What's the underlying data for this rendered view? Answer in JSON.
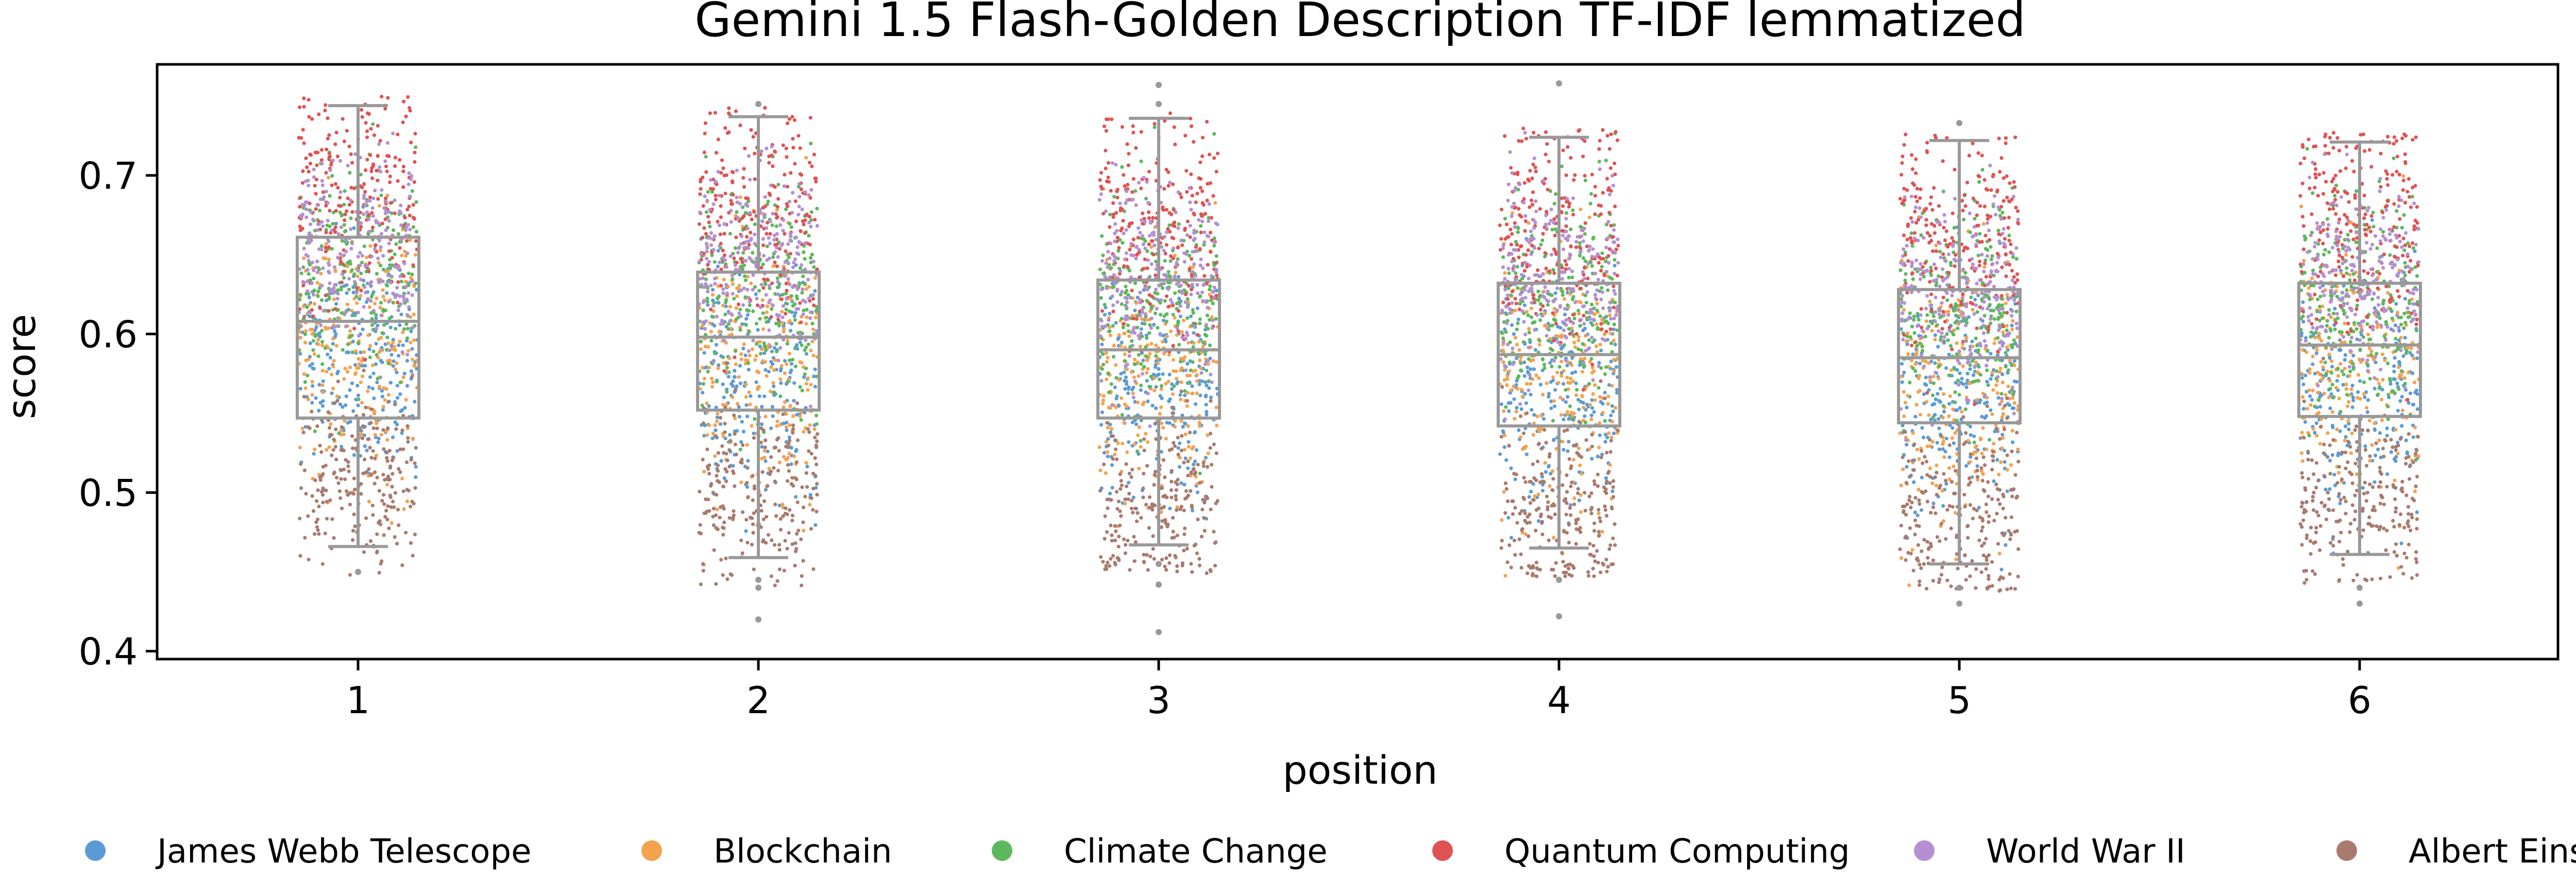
{
  "chart_data": {
    "type": "box-strip",
    "title": "Gemini 1.5 Flash-Golden Description TF-IDF lemmatized",
    "xlabel": "position",
    "ylabel": "score",
    "categories": [
      "1",
      "2",
      "3",
      "4",
      "5",
      "6"
    ],
    "yticks": [
      "0.4",
      "0.5",
      "0.6",
      "0.7"
    ],
    "ylim": [
      0.395,
      0.77
    ],
    "grid": false,
    "legend_position": "bottom",
    "box_color": "#999999",
    "boxes": [
      {
        "position": "1",
        "whislo": 0.466,
        "q1": 0.547,
        "median": 0.608,
        "q3": 0.661,
        "whishi": 0.744,
        "outliers": [
          0.45
        ]
      },
      {
        "position": "2",
        "whislo": 0.459,
        "q1": 0.552,
        "median": 0.598,
        "q3": 0.639,
        "whishi": 0.737,
        "outliers": [
          0.445,
          0.44,
          0.42,
          0.745
        ]
      },
      {
        "position": "3",
        "whislo": 0.467,
        "q1": 0.547,
        "median": 0.59,
        "q3": 0.634,
        "whishi": 0.736,
        "outliers": [
          0.455,
          0.442,
          0.412,
          0.745,
          0.757
        ]
      },
      {
        "position": "4",
        "whislo": 0.465,
        "q1": 0.542,
        "median": 0.587,
        "q3": 0.632,
        "whishi": 0.724,
        "outliers": [
          0.445,
          0.422,
          0.758
        ]
      },
      {
        "position": "5",
        "whislo": 0.455,
        "q1": 0.544,
        "median": 0.585,
        "q3": 0.628,
        "whishi": 0.722,
        "outliers": [
          0.44,
          0.43,
          0.733
        ]
      },
      {
        "position": "6",
        "whislo": 0.461,
        "q1": 0.548,
        "median": 0.593,
        "q3": 0.632,
        "whishi": 0.721,
        "outliers": [
          0.44,
          0.43
        ]
      }
    ],
    "series": [
      {
        "name": "James Webb Telescope",
        "color": "#5b9bd5",
        "center": 0.575,
        "spread": 0.035
      },
      {
        "name": "Blockchain",
        "color": "#f4a24d",
        "center": 0.585,
        "spread": 0.04
      },
      {
        "name": "Climate Change",
        "color": "#5cb85c",
        "center": 0.63,
        "spread": 0.035
      },
      {
        "name": "Quantum Computing",
        "color": "#e05252",
        "center": 0.68,
        "spread": 0.035
      },
      {
        "name": "World War II",
        "color": "#b48fd1",
        "center": 0.645,
        "spread": 0.03
      },
      {
        "name": "Albert Einstein",
        "color": "#a97a6e",
        "center": 0.5,
        "spread": 0.03
      }
    ]
  }
}
